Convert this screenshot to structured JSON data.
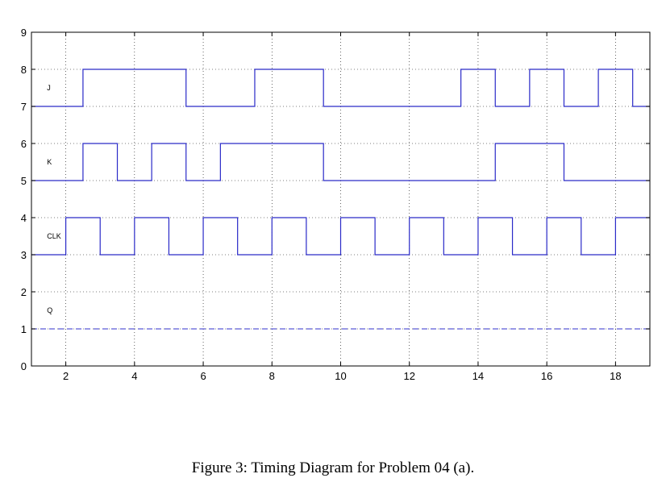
{
  "chart_data": {
    "type": "line",
    "xlim": [
      1,
      19
    ],
    "ylim": [
      0,
      9
    ],
    "x_ticks": [
      2,
      4,
      6,
      8,
      10,
      12,
      14,
      16,
      18
    ],
    "y_ticks": [
      0,
      1,
      2,
      3,
      4,
      5,
      6,
      7,
      8,
      9
    ],
    "grid": true,
    "series": [
      {
        "name": "J",
        "color": "#2a2ac8",
        "step": true,
        "points": [
          [
            1,
            7
          ],
          [
            2.5,
            7
          ],
          [
            2.5,
            8
          ],
          [
            5.5,
            8
          ],
          [
            5.5,
            7
          ],
          [
            7.5,
            7
          ],
          [
            7.5,
            8
          ],
          [
            9.5,
            8
          ],
          [
            9.5,
            7
          ],
          [
            13.5,
            7
          ],
          [
            13.5,
            8
          ],
          [
            14.5,
            8
          ],
          [
            14.5,
            7
          ],
          [
            15.5,
            7
          ],
          [
            15.5,
            8
          ],
          [
            16.5,
            8
          ],
          [
            16.5,
            7
          ],
          [
            17.5,
            7
          ],
          [
            17.5,
            8
          ],
          [
            18.5,
            8
          ],
          [
            18.5,
            7
          ],
          [
            19,
            7
          ]
        ]
      },
      {
        "name": "K",
        "color": "#2a2ac8",
        "step": true,
        "points": [
          [
            1,
            5
          ],
          [
            2.5,
            5
          ],
          [
            2.5,
            6
          ],
          [
            3.5,
            6
          ],
          [
            3.5,
            5
          ],
          [
            4.5,
            5
          ],
          [
            4.5,
            6
          ],
          [
            5.5,
            6
          ],
          [
            5.5,
            5
          ],
          [
            6.5,
            5
          ],
          [
            6.5,
            6
          ],
          [
            9.5,
            6
          ],
          [
            9.5,
            5
          ],
          [
            14.5,
            5
          ],
          [
            14.5,
            6
          ],
          [
            16.5,
            6
          ],
          [
            16.5,
            5
          ],
          [
            19,
            5
          ]
        ]
      },
      {
        "name": "CLK",
        "color": "#2a2ac8",
        "step": true,
        "points": [
          [
            1,
            3
          ],
          [
            2,
            3
          ],
          [
            2,
            4
          ],
          [
            3,
            4
          ],
          [
            3,
            3
          ],
          [
            4,
            3
          ],
          [
            4,
            4
          ],
          [
            5,
            4
          ],
          [
            5,
            3
          ],
          [
            6,
            3
          ],
          [
            6,
            4
          ],
          [
            7,
            4
          ],
          [
            7,
            3
          ],
          [
            8,
            3
          ],
          [
            8,
            4
          ],
          [
            9,
            4
          ],
          [
            9,
            3
          ],
          [
            10,
            3
          ],
          [
            10,
            4
          ],
          [
            11,
            4
          ],
          [
            11,
            3
          ],
          [
            12,
            3
          ],
          [
            12,
            4
          ],
          [
            13,
            4
          ],
          [
            13,
            3
          ],
          [
            14,
            3
          ],
          [
            14,
            4
          ],
          [
            15,
            4
          ],
          [
            15,
            3
          ],
          [
            16,
            3
          ],
          [
            16,
            4
          ],
          [
            17,
            4
          ],
          [
            17,
            3
          ],
          [
            18,
            3
          ],
          [
            18,
            4
          ],
          [
            19,
            4
          ]
        ]
      },
      {
        "name": "Q",
        "color": "#5a5ad8",
        "dashed": true,
        "points": [
          [
            1,
            1
          ],
          [
            19,
            1
          ]
        ]
      }
    ],
    "signal_labels": [
      {
        "text": "J",
        "x": 1.5,
        "y": 7.5
      },
      {
        "text": "K",
        "x": 1.5,
        "y": 5.5
      },
      {
        "text": "CLK",
        "x": 1.5,
        "y": 3.5
      },
      {
        "text": "Q",
        "x": 1.5,
        "y": 1.5
      }
    ]
  },
  "caption": "Figure 3: Timing Diagram for Problem 04 (a)."
}
